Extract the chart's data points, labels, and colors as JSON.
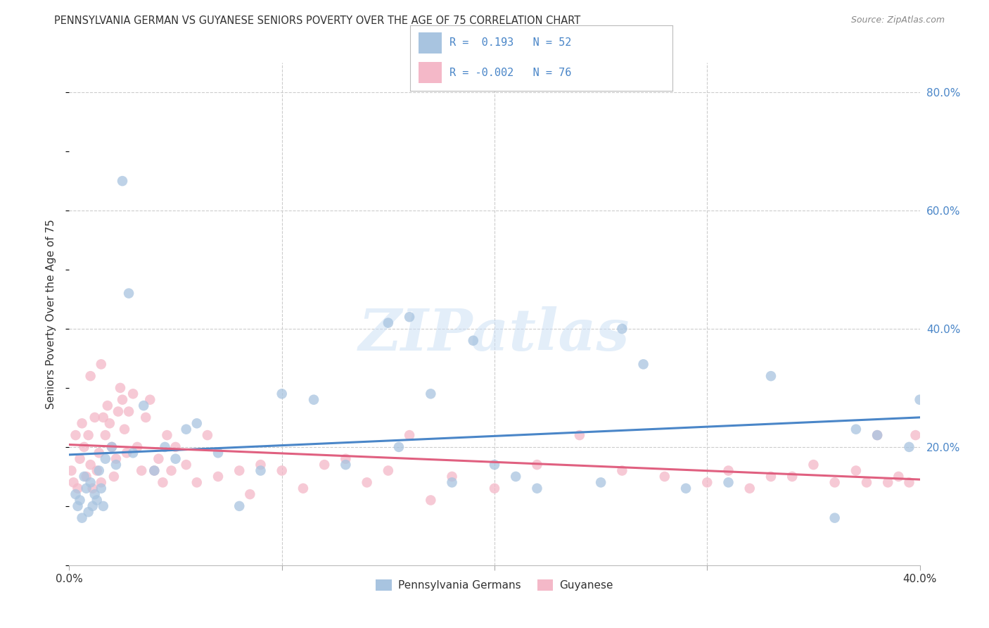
{
  "title": "PENNSYLVANIA GERMAN VS GUYANESE SENIORS POVERTY OVER THE AGE OF 75 CORRELATION CHART",
  "source": "Source: ZipAtlas.com",
  "ylabel": "Seniors Poverty Over the Age of 75",
  "xlim": [
    0.0,
    0.4
  ],
  "ylim": [
    0.0,
    0.85
  ],
  "grid_color": "#cccccc",
  "background_color": "#ffffff",
  "blue_color": "#a8c4e0",
  "pink_color": "#f4b8c8",
  "blue_line_color": "#4a86c8",
  "pink_line_color": "#e06080",
  "axis_label_color": "#4a86c8",
  "text_color": "#333333",
  "r_blue": 0.193,
  "n_blue": 52,
  "r_pink": -0.002,
  "n_pink": 76,
  "legend_labels": [
    "Pennsylvania Germans",
    "Guyanese"
  ],
  "watermark": "ZIPatlas",
  "pa_german_x": [
    0.003,
    0.004,
    0.005,
    0.006,
    0.007,
    0.008,
    0.009,
    0.01,
    0.011,
    0.012,
    0.013,
    0.014,
    0.015,
    0.016,
    0.017,
    0.02,
    0.022,
    0.025,
    0.028,
    0.03,
    0.035,
    0.04,
    0.045,
    0.05,
    0.055,
    0.06,
    0.07,
    0.08,
    0.09,
    0.1,
    0.115,
    0.13,
    0.15,
    0.16,
    0.17,
    0.18,
    0.19,
    0.2,
    0.21,
    0.22,
    0.25,
    0.27,
    0.29,
    0.31,
    0.33,
    0.36,
    0.37,
    0.38,
    0.395,
    0.4,
    0.155,
    0.26
  ],
  "pa_german_y": [
    0.12,
    0.1,
    0.11,
    0.08,
    0.15,
    0.13,
    0.09,
    0.14,
    0.1,
    0.12,
    0.11,
    0.16,
    0.13,
    0.1,
    0.18,
    0.2,
    0.17,
    0.65,
    0.46,
    0.19,
    0.27,
    0.16,
    0.2,
    0.18,
    0.23,
    0.24,
    0.19,
    0.1,
    0.16,
    0.29,
    0.28,
    0.17,
    0.41,
    0.42,
    0.29,
    0.14,
    0.38,
    0.17,
    0.15,
    0.13,
    0.14,
    0.34,
    0.13,
    0.14,
    0.32,
    0.08,
    0.23,
    0.22,
    0.2,
    0.28,
    0.2,
    0.4
  ],
  "guyanese_x": [
    0.001,
    0.002,
    0.003,
    0.004,
    0.005,
    0.006,
    0.007,
    0.008,
    0.009,
    0.01,
    0.011,
    0.012,
    0.013,
    0.014,
    0.015,
    0.016,
    0.017,
    0.018,
    0.019,
    0.02,
    0.021,
    0.022,
    0.023,
    0.024,
    0.025,
    0.026,
    0.027,
    0.028,
    0.03,
    0.032,
    0.034,
    0.036,
    0.038,
    0.04,
    0.042,
    0.044,
    0.046,
    0.048,
    0.05,
    0.055,
    0.06,
    0.065,
    0.07,
    0.08,
    0.085,
    0.09,
    0.1,
    0.11,
    0.12,
    0.13,
    0.14,
    0.15,
    0.16,
    0.17,
    0.18,
    0.2,
    0.22,
    0.24,
    0.26,
    0.28,
    0.3,
    0.31,
    0.32,
    0.33,
    0.34,
    0.35,
    0.36,
    0.37,
    0.375,
    0.38,
    0.385,
    0.39,
    0.395,
    0.398,
    0.01,
    0.015
  ],
  "guyanese_y": [
    0.16,
    0.14,
    0.22,
    0.13,
    0.18,
    0.24,
    0.2,
    0.15,
    0.22,
    0.17,
    0.13,
    0.25,
    0.16,
    0.19,
    0.14,
    0.25,
    0.22,
    0.27,
    0.24,
    0.2,
    0.15,
    0.18,
    0.26,
    0.3,
    0.28,
    0.23,
    0.19,
    0.26,
    0.29,
    0.2,
    0.16,
    0.25,
    0.28,
    0.16,
    0.18,
    0.14,
    0.22,
    0.16,
    0.2,
    0.17,
    0.14,
    0.22,
    0.15,
    0.16,
    0.12,
    0.17,
    0.16,
    0.13,
    0.17,
    0.18,
    0.14,
    0.16,
    0.22,
    0.11,
    0.15,
    0.13,
    0.17,
    0.22,
    0.16,
    0.15,
    0.14,
    0.16,
    0.13,
    0.15,
    0.15,
    0.17,
    0.14,
    0.16,
    0.14,
    0.22,
    0.14,
    0.15,
    0.14,
    0.22,
    0.32,
    0.34
  ]
}
